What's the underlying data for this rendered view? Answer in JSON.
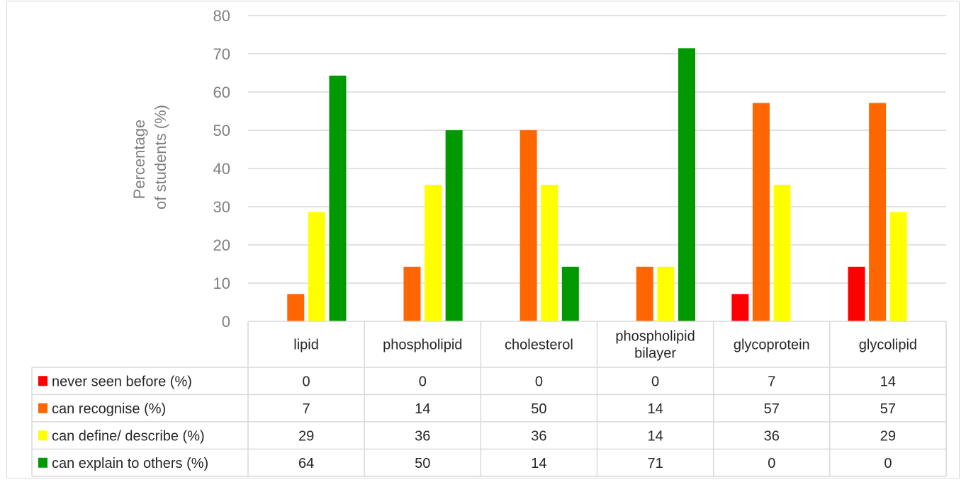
{
  "chart_data": {
    "type": "bar",
    "ylabel": [
      "Percentage",
      "of students (%)"
    ],
    "ylim": [
      0,
      80
    ],
    "yticks": [
      0,
      10,
      20,
      30,
      40,
      50,
      60,
      70,
      80
    ],
    "grid": true,
    "categories": [
      [
        "lipid"
      ],
      [
        "phospholipid"
      ],
      [
        "cholesterol"
      ],
      [
        "phospholipid",
        "bilayer"
      ],
      [
        "glycoprotein"
      ],
      [
        "glycolipid"
      ]
    ],
    "series": [
      {
        "name": "never seen before (%)",
        "color": "#ff0000",
        "values": [
          0,
          0,
          0,
          0,
          7,
          14
        ]
      },
      {
        "name": "can recognise (%)",
        "color": "#ff6600",
        "values": [
          7,
          14,
          50,
          14,
          57,
          57
        ]
      },
      {
        "name": "can define/ describe (%)",
        "color": "#ffff00",
        "values": [
          29,
          36,
          36,
          14,
          36,
          29
        ]
      },
      {
        "name": "can explain to others (%)",
        "color": "#009900",
        "values": [
          64,
          50,
          14,
          71,
          0,
          0
        ]
      }
    ],
    "bar_values_plotted": [
      [
        0,
        0,
        0,
        0,
        7.14,
        14.29
      ],
      [
        7.14,
        14.29,
        50,
        14.29,
        57.14,
        57.14
      ],
      [
        28.57,
        35.71,
        35.71,
        14.29,
        35.71,
        28.57
      ],
      [
        64.29,
        50,
        14.29,
        71.43,
        0,
        0
      ]
    ],
    "data_table": true
  }
}
